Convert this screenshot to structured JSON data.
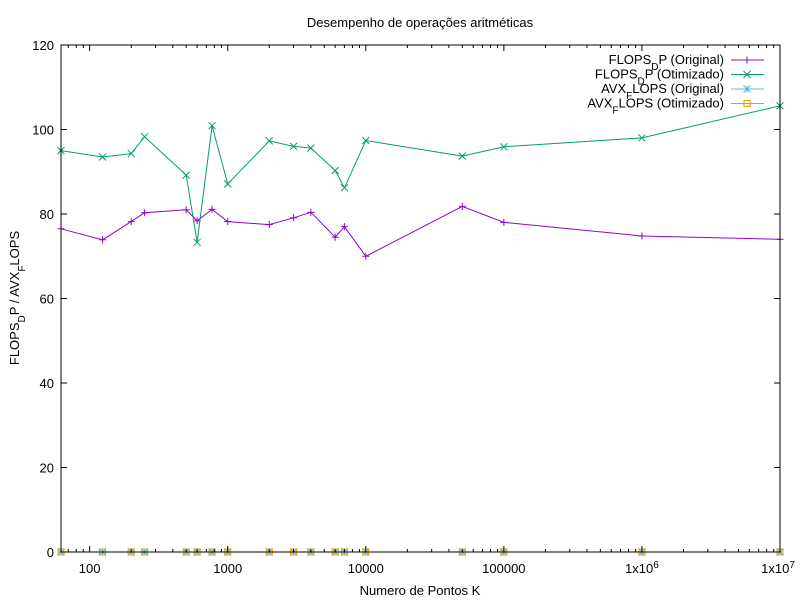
{
  "chart_data": {
    "type": "line",
    "title": "Desempenho de operações aritméticas",
    "xlabel": "Numero de Pontos K",
    "ylabel": "FLOPS_DP / AVX_FLOPS",
    "x_scale": "log",
    "xlim": [
      62,
      10000000
    ],
    "ylim": [
      0,
      120
    ],
    "grid": false,
    "legend_position": "top-right",
    "x_ticks": [
      {
        "value": 100,
        "label": "100"
      },
      {
        "value": 1000,
        "label": "1000"
      },
      {
        "value": 10000,
        "label": "10000"
      },
      {
        "value": 100000,
        "label": "100000"
      },
      {
        "value": 1000000,
        "label": "1x10^6"
      },
      {
        "value": 10000000,
        "label": "1x10^7"
      }
    ],
    "y_ticks": [
      0,
      20,
      40,
      60,
      80,
      100,
      120
    ],
    "x": [
      62,
      124,
      200,
      250,
      500,
      600,
      770,
      1000,
      2000,
      3000,
      4000,
      6000,
      7000,
      10000,
      50000,
      100000,
      1000000,
      10000000
    ],
    "series": [
      {
        "name": "FLOPS_DP (Original)",
        "color": "#9400d3",
        "marker": "plus",
        "values": [
          76.5,
          73.9,
          78.2,
          80.3,
          81.0,
          78.4,
          81.1,
          78.2,
          77.5,
          79.1,
          80.4,
          74.5,
          77.0,
          70.0,
          81.8,
          78.0,
          74.8,
          74.0
        ]
      },
      {
        "name": "FLOPS_DP (Otimizado)",
        "color": "#009e73",
        "marker": "cross",
        "values": [
          95.0,
          93.5,
          94.3,
          98.3,
          89.2,
          73.3,
          100.9,
          87.1,
          97.3,
          96.0,
          95.6,
          90.3,
          86.2,
          97.4,
          93.7,
          95.9,
          98.0,
          105.6
        ]
      },
      {
        "name": "AVX_FLOPS (Original)",
        "color": "#56b4e9",
        "marker": "star",
        "values": [
          0,
          0,
          0,
          0,
          0,
          0,
          0,
          0,
          0,
          0,
          0,
          0,
          0,
          0,
          0,
          0,
          0,
          0
        ]
      },
      {
        "name": "AVX_FLOPS (Otimizado)",
        "color": "#e69f00",
        "marker": "square",
        "values": [
          0,
          0,
          0,
          0,
          0,
          0,
          0,
          0,
          0,
          0,
          0,
          0,
          0,
          0,
          0,
          0,
          0,
          0
        ]
      }
    ]
  }
}
